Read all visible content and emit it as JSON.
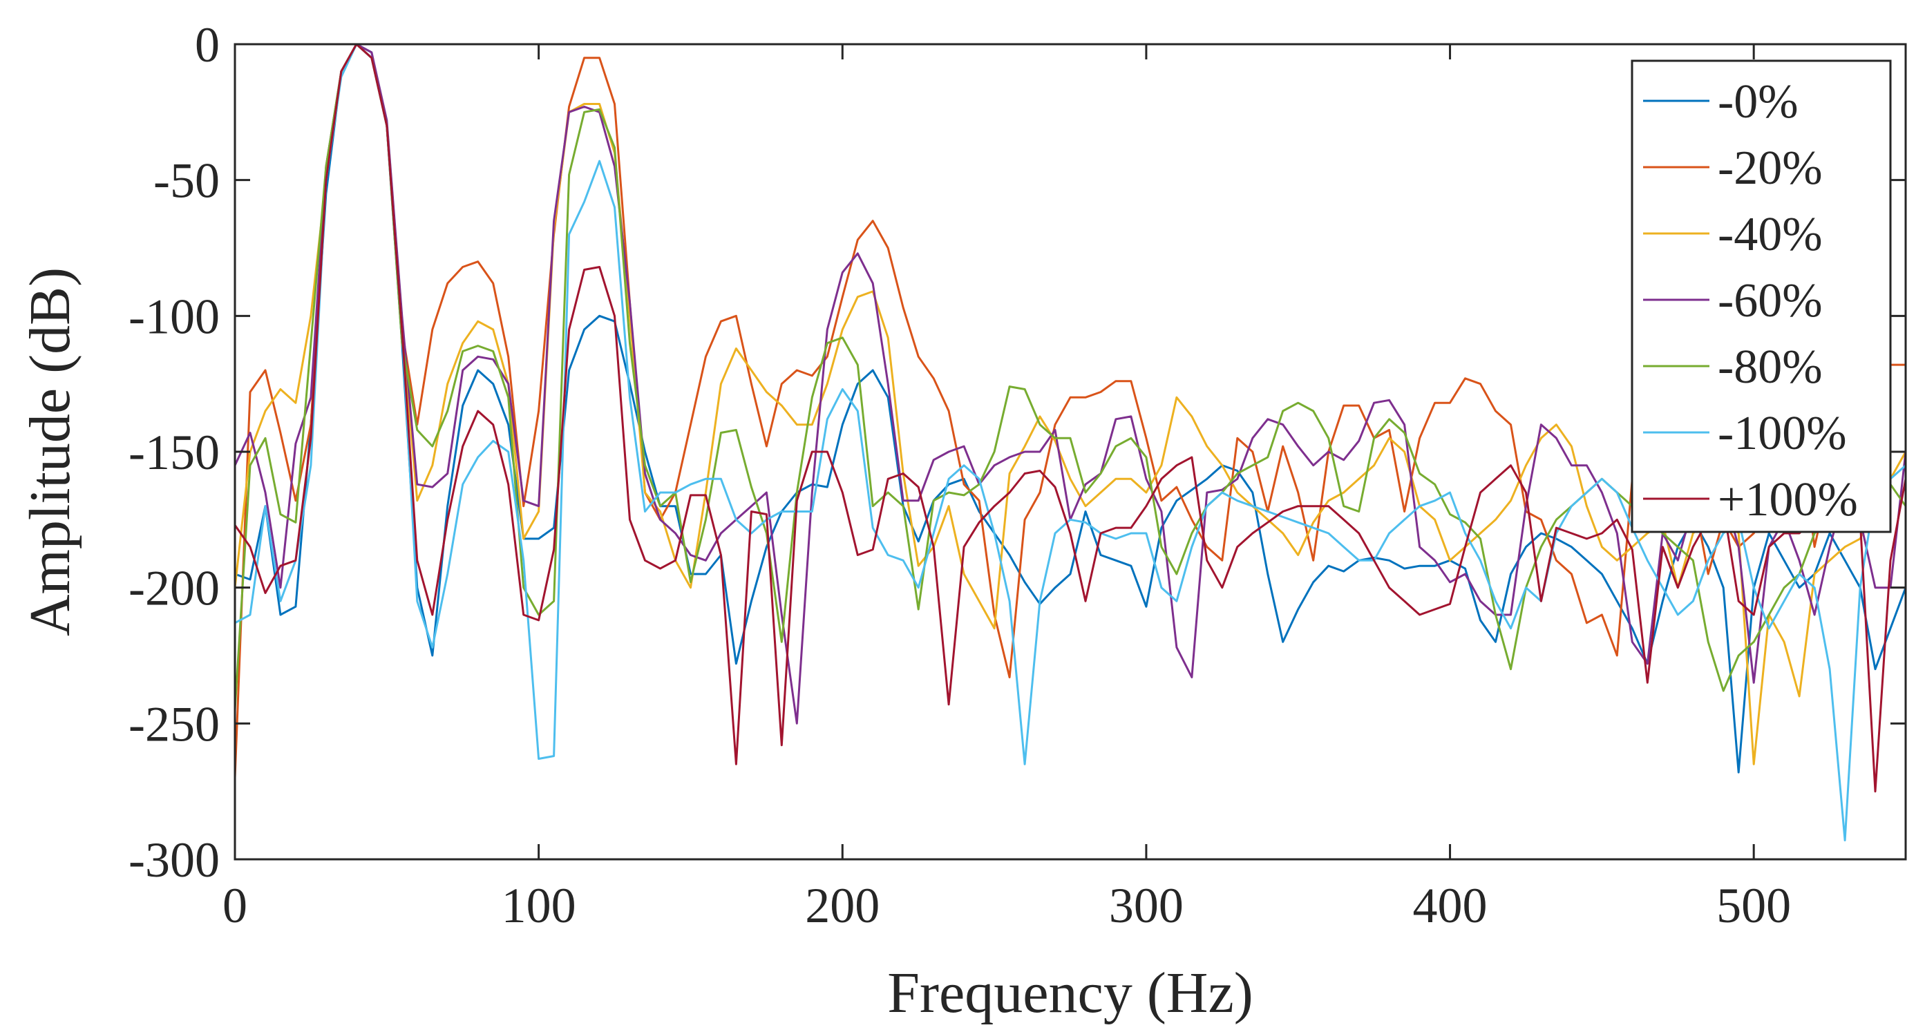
{
  "chart_data": {
    "type": "line",
    "title": "",
    "xlabel": "Frequency (Hz)",
    "ylabel": "Amplitude (dB)",
    "xlim": [
      0,
      550
    ],
    "ylim": [
      -300,
      0
    ],
    "xticks": [
      0,
      100,
      200,
      300,
      400,
      500
    ],
    "xtick_labels": [
      "0",
      "100",
      "200",
      "300",
      "400",
      "500"
    ],
    "yticks": [
      0,
      -50,
      -100,
      -150,
      -200,
      -250,
      -300
    ],
    "ytick_labels": [
      "0",
      "-50",
      "-100",
      "-150",
      "-200",
      "-250",
      "-300"
    ],
    "grid": false,
    "legend_position": "top-right",
    "x": [
      0,
      5,
      10,
      15,
      20,
      25,
      30,
      35,
      40,
      45,
      50,
      55,
      60,
      65,
      70,
      75,
      80,
      85,
      90,
      95,
      100,
      105,
      110,
      115,
      120,
      125,
      130,
      135,
      140,
      145,
      150,
      155,
      160,
      165,
      170,
      175,
      180,
      185,
      190,
      195,
      200,
      205,
      210,
      215,
      220,
      225,
      230,
      235,
      240,
      245,
      250,
      255,
      260,
      265,
      270,
      275,
      280,
      285,
      290,
      295,
      300,
      305,
      310,
      315,
      320,
      325,
      330,
      335,
      340,
      345,
      350,
      355,
      360,
      365,
      370,
      375,
      380,
      385,
      390,
      395,
      400,
      405,
      410,
      415,
      420,
      425,
      430,
      435,
      440,
      445,
      450,
      455,
      460,
      465,
      470,
      475,
      480,
      485,
      490,
      495,
      500,
      505,
      510,
      515,
      520,
      525,
      530,
      535,
      540,
      545,
      550
    ],
    "series": [
      {
        "name": "-0%",
        "color": "#0072BD",
        "values": [
          -195,
          -197,
          -170,
          -210,
          -207,
          -140,
          -55,
          -10,
          0,
          -3,
          -30,
          -110,
          -200,
          -225,
          -170,
          -133,
          -120,
          -125,
          -140,
          -182,
          -182,
          -178,
          -120,
          -105,
          -100,
          -102,
          -125,
          -150,
          -170,
          -170,
          -195,
          -195,
          -188,
          -228,
          -205,
          -185,
          -172,
          -165,
          -162,
          -163,
          -140,
          -125,
          -120,
          -130,
          -170,
          -183,
          -168,
          -162,
          -160,
          -172,
          -180,
          -188,
          -198,
          -206,
          -200,
          -195,
          -172,
          -188,
          -190,
          -192,
          -207,
          -178,
          -168,
          -164,
          -160,
          -155,
          -157,
          -165,
          -195,
          -220,
          -208,
          -198,
          -192,
          -194,
          -190,
          -189,
          -190,
          -193,
          -192,
          -192,
          -190,
          -193,
          -212,
          -220,
          -195,
          -185,
          -180,
          -182,
          -185,
          -190,
          -195,
          -205,
          -215,
          -228,
          -205,
          -185,
          -175,
          -185,
          -200,
          -268,
          -200,
          -180,
          -190,
          -200,
          -195,
          -180,
          -190,
          -200,
          -230,
          -215,
          -200
        ]
      },
      {
        "name": "-20%",
        "color": "#D95319",
        "values": [
          -270,
          -128,
          -120,
          -143,
          -168,
          -140,
          -50,
          -10,
          0,
          -5,
          -30,
          -105,
          -140,
          -105,
          -88,
          -82,
          -80,
          -88,
          -115,
          -170,
          -135,
          -70,
          -23,
          -5,
          -5,
          -22,
          -95,
          -165,
          -175,
          -165,
          -140,
          -115,
          -102,
          -100,
          -125,
          -148,
          -125,
          -120,
          -122,
          -115,
          -93,
          -72,
          -65,
          -75,
          -97,
          -115,
          -123,
          -135,
          -162,
          -168,
          -210,
          -233,
          -175,
          -165,
          -140,
          -130,
          -130,
          -128,
          -124,
          -124,
          -145,
          -168,
          -163,
          -175,
          -185,
          -190,
          -145,
          -150,
          -172,
          -148,
          -165,
          -190,
          -150,
          -133,
          -133,
          -145,
          -142,
          -172,
          -145,
          -132,
          -132,
          -123,
          -125,
          -135,
          -140,
          -172,
          -175,
          -190,
          -195,
          -213,
          -210,
          -225,
          -160,
          -165,
          -170,
          -175,
          -165,
          -195,
          -175,
          -185,
          -180,
          -170,
          -140,
          -140,
          -185,
          -160,
          -150,
          -155,
          -140,
          -118,
          -118
        ]
      },
      {
        "name": "-40%",
        "color": "#EDB120",
        "values": [
          -200,
          -150,
          -135,
          -127,
          -132,
          -100,
          -50,
          -10,
          0,
          -5,
          -30,
          -105,
          -168,
          -155,
          -125,
          -110,
          -102,
          -105,
          -125,
          -182,
          -172,
          -68,
          -25,
          -22,
          -22,
          -40,
          -100,
          -165,
          -172,
          -190,
          -200,
          -165,
          -125,
          -112,
          -120,
          -128,
          -133,
          -140,
          -140,
          -125,
          -105,
          -93,
          -91,
          -108,
          -158,
          -192,
          -185,
          -170,
          -195,
          -205,
          -215,
          -158,
          -148,
          -137,
          -146,
          -160,
          -170,
          -165,
          -160,
          -160,
          -165,
          -155,
          -130,
          -137,
          -148,
          -155,
          -165,
          -170,
          -175,
          -180,
          -188,
          -176,
          -168,
          -165,
          -160,
          -155,
          -145,
          -150,
          -170,
          -175,
          -190,
          -185,
          -180,
          -175,
          -168,
          -155,
          -145,
          -140,
          -148,
          -170,
          -185,
          -190,
          -185,
          -180,
          -176,
          -200,
          -180,
          -175,
          -172,
          -180,
          -265,
          -210,
          -220,
          -240,
          -195,
          -190,
          -185,
          -182,
          -170,
          -160,
          -150
        ]
      },
      {
        "name": "-60%",
        "color": "#7E2F8E",
        "values": [
          -155,
          -143,
          -165,
          -200,
          -147,
          -130,
          -45,
          -10,
          0,
          -3,
          -28,
          -100,
          -162,
          -163,
          -158,
          -120,
          -115,
          -116,
          -125,
          -168,
          -170,
          -65,
          -25,
          -23,
          -25,
          -45,
          -95,
          -158,
          -175,
          -180,
          -188,
          -190,
          -180,
          -175,
          -170,
          -165,
          -210,
          -250,
          -165,
          -105,
          -84,
          -77,
          -88,
          -125,
          -168,
          -168,
          -153,
          -150,
          -148,
          -162,
          -155,
          -152,
          -150,
          -150,
          -142,
          -175,
          -162,
          -158,
          -138,
          -137,
          -160,
          -172,
          -222,
          -233,
          -165,
          -164,
          -160,
          -145,
          -138,
          -140,
          -148,
          -155,
          -150,
          -153,
          -146,
          -132,
          -131,
          -140,
          -185,
          -190,
          -198,
          -195,
          -205,
          -210,
          -210,
          -170,
          -140,
          -145,
          -155,
          -155,
          -165,
          -180,
          -220,
          -228,
          -180,
          -190,
          -170,
          -160,
          -165,
          -185,
          -235,
          -185,
          -175,
          -190,
          -210,
          -185,
          -165,
          -175,
          -200,
          -200,
          -150
        ]
      },
      {
        "name": "-80%",
        "color": "#77AC30",
        "values": [
          -245,
          -155,
          -145,
          -173,
          -176,
          -110,
          -45,
          -10,
          0,
          -5,
          -30,
          -110,
          -142,
          -148,
          -135,
          -113,
          -111,
          -113,
          -130,
          -200,
          -210,
          -205,
          -48,
          -25,
          -24,
          -38,
          -110,
          -155,
          -170,
          -165,
          -198,
          -175,
          -143,
          -142,
          -163,
          -180,
          -220,
          -165,
          -130,
          -110,
          -108,
          -118,
          -170,
          -165,
          -170,
          -208,
          -168,
          -165,
          -166,
          -162,
          -150,
          -126,
          -127,
          -140,
          -145,
          -145,
          -165,
          -158,
          -148,
          -145,
          -152,
          -185,
          -195,
          -180,
          -170,
          -165,
          -158,
          -155,
          -152,
          -135,
          -132,
          -135,
          -145,
          -170,
          -172,
          -145,
          -138,
          -143,
          -158,
          -162,
          -173,
          -176,
          -182,
          -210,
          -230,
          -200,
          -185,
          -175,
          -170,
          -165,
          -160,
          -165,
          -170,
          -175,
          -180,
          -185,
          -190,
          -220,
          -238,
          -225,
          -220,
          -210,
          -200,
          -195,
          -180,
          -175,
          -170,
          -175,
          -160,
          -162,
          -170
        ]
      },
      {
        "name": "-100%",
        "color": "#4DBEEE",
        "values": [
          -213,
          -210,
          -170,
          -205,
          -190,
          -155,
          -50,
          -12,
          0,
          -5,
          -30,
          -105,
          -205,
          -222,
          -195,
          -162,
          -152,
          -146,
          -150,
          -190,
          -263,
          -262,
          -70,
          -58,
          -43,
          -60,
          -130,
          -172,
          -165,
          -165,
          -162,
          -160,
          -160,
          -175,
          -180,
          -175,
          -172,
          -172,
          -172,
          -138,
          -127,
          -135,
          -178,
          -188,
          -190,
          -200,
          -180,
          -160,
          -155,
          -160,
          -180,
          -205,
          -265,
          -205,
          -180,
          -175,
          -176,
          -180,
          -182,
          -180,
          -180,
          -200,
          -205,
          -185,
          -170,
          -165,
          -168,
          -170,
          -172,
          -174,
          -176,
          -178,
          -180,
          -185,
          -190,
          -190,
          -180,
          -175,
          -170,
          -168,
          -165,
          -180,
          -190,
          -205,
          -215,
          -200,
          -205,
          -180,
          -170,
          -165,
          -160,
          -165,
          -178,
          -190,
          -200,
          -210,
          -205,
          -190,
          -180,
          -175,
          -200,
          -215,
          -205,
          -195,
          -200,
          -230,
          -293,
          -200,
          -165,
          -160,
          -155
        ]
      },
      {
        "name": "+100%",
        "color": "#A2142F",
        "values": [
          -177,
          -185,
          -202,
          -192,
          -190,
          -145,
          -50,
          -10,
          0,
          -5,
          -30,
          -105,
          -190,
          -210,
          -175,
          -148,
          -135,
          -140,
          -162,
          -210,
          -212,
          -186,
          -105,
          -83,
          -82,
          -100,
          -175,
          -190,
          -193,
          -190,
          -166,
          -166,
          -188,
          -265,
          -172,
          -173,
          -258,
          -168,
          -150,
          -150,
          -165,
          -188,
          -186,
          -160,
          -158,
          -163,
          -185,
          -243,
          -185,
          -176,
          -170,
          -165,
          -158,
          -157,
          -163,
          -180,
          -205,
          -180,
          -178,
          -178,
          -170,
          -160,
          -155,
          -152,
          -190,
          -200,
          -185,
          -180,
          -176,
          -172,
          -170,
          -170,
          -170,
          -175,
          -180,
          -190,
          -200,
          -205,
          -210,
          -208,
          -206,
          -185,
          -165,
          -160,
          -155,
          -165,
          -205,
          -178,
          -180,
          -182,
          -180,
          -175,
          -186,
          -235,
          -185,
          -200,
          -185,
          -175,
          -170,
          -205,
          -210,
          -185,
          -180,
          -180,
          -175,
          -170,
          -165,
          -175,
          -275,
          -190,
          -160
        ]
      }
    ]
  }
}
